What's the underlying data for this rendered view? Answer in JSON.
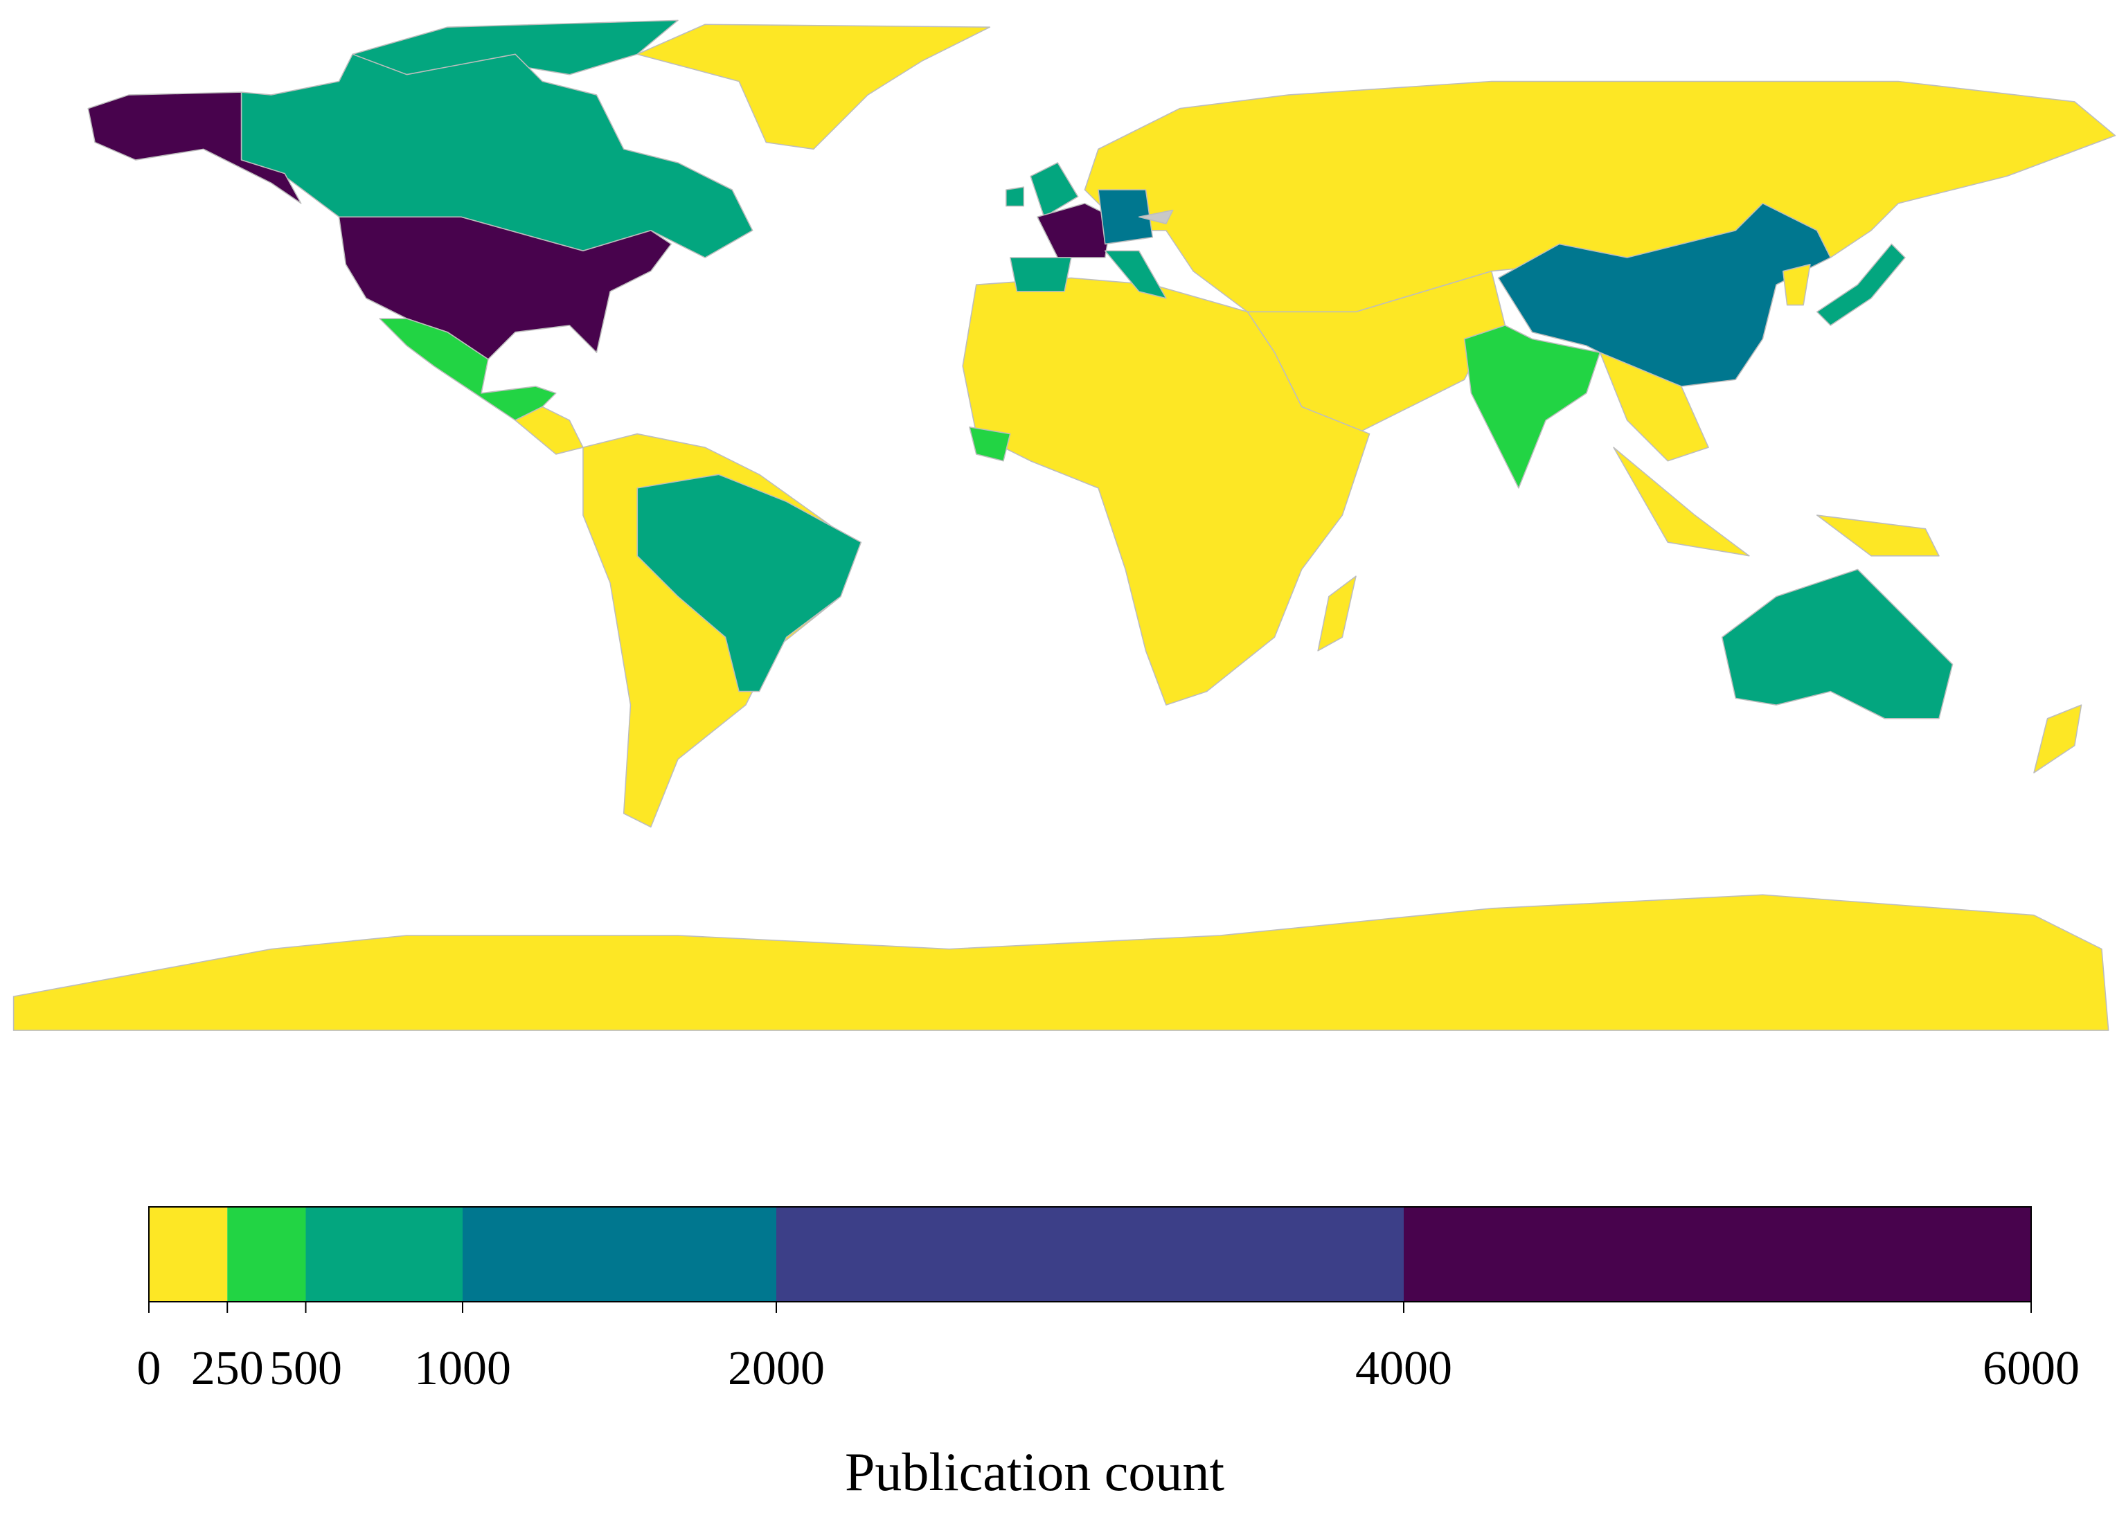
{
  "chart_data": {
    "type": "choropleth",
    "xlabel": "Publication count",
    "bins": [
      0,
      250,
      500,
      1000,
      2000,
      4000,
      6000
    ],
    "colors": [
      "#fde725",
      "#22d444",
      "#03a67f",
      "#00778f",
      "#3c3f88",
      "#48034d"
    ],
    "na_color": "#c8c8c8",
    "xlim": [
      0,
      6000
    ],
    "xticks": [
      0,
      250,
      500,
      1000,
      2000,
      4000,
      6000
    ]
  }
}
